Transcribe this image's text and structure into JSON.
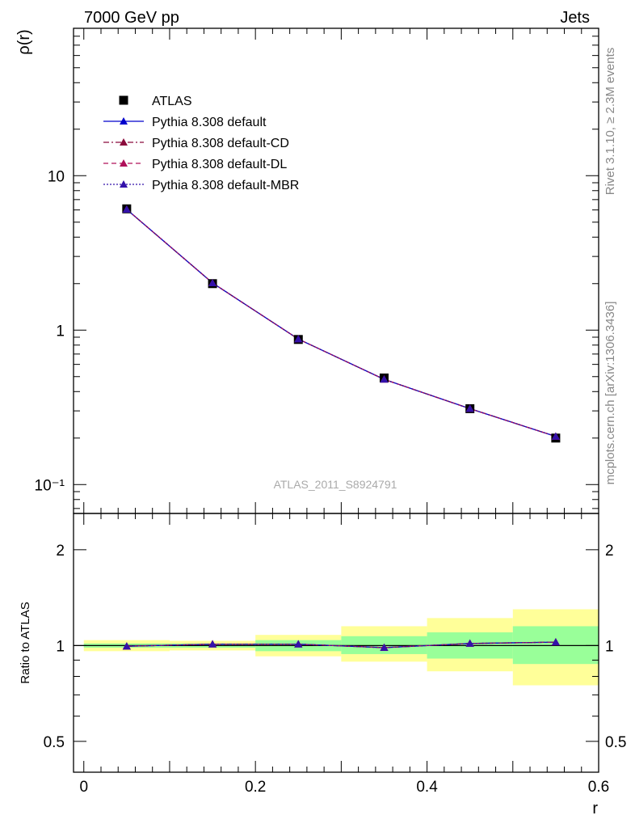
{
  "header": {
    "left": "7000 GeV pp",
    "right": "Jets"
  },
  "side_labels": {
    "rivet": "Rivet 3.1.10, ≥ 2.3M events",
    "source": "mcplots.cern.ch [arXiv:1306.3436]"
  },
  "watermark": "ATLAS_2011_S8924791",
  "legend_items": [
    {
      "label": "ATLAS",
      "color": "#000000",
      "marker": "square",
      "line": "none"
    },
    {
      "label": "Pythia 8.308 default",
      "color": "#0000cc",
      "marker": "triangle",
      "line": "solid"
    },
    {
      "label": "Pythia 8.308 default-CD",
      "color": "#8b0a3c",
      "marker": "triangle",
      "line": "dashdot"
    },
    {
      "label": "Pythia 8.308 default-DL",
      "color": "#b0105a",
      "marker": "triangle",
      "line": "dashed"
    },
    {
      "label": "Pythia 8.308 default-MBR",
      "color": "#3311aa",
      "marker": "triangle",
      "line": "dotted"
    }
  ],
  "chart_data": [
    {
      "type": "line",
      "ylabel": "ρ(r)",
      "yscale": "log",
      "ylim": [
        0.065,
        90
      ],
      "xlim": [
        -0.012,
        0.6
      ],
      "ytick_labels": [
        {
          "value": 0.1,
          "label": "10⁻¹"
        },
        {
          "value": 1,
          "label": "1"
        },
        {
          "value": 10,
          "label": "10"
        }
      ],
      "x": [
        0.05,
        0.15,
        0.25,
        0.35,
        0.45,
        0.55
      ],
      "x_bins": [
        [
          0,
          0.1
        ],
        [
          0.1,
          0.2
        ],
        [
          0.2,
          0.3
        ],
        [
          0.3,
          0.4
        ],
        [
          0.4,
          0.5
        ],
        [
          0.5,
          0.6
        ]
      ],
      "series": [
        {
          "name": "ATLAS",
          "values": [
            6.1,
            2.0,
            0.87,
            0.49,
            0.31,
            0.2
          ],
          "color": "#000000"
        },
        {
          "name": "Pythia 8.308 default",
          "values": [
            6.05,
            2.02,
            0.875,
            0.48,
            0.31,
            0.205
          ],
          "color": "#0000cc"
        },
        {
          "name": "Pythia 8.308 default-CD",
          "values": [
            6.05,
            2.02,
            0.875,
            0.48,
            0.31,
            0.205
          ],
          "color": "#8b0a3c"
        },
        {
          "name": "Pythia 8.308 default-DL",
          "values": [
            6.05,
            2.02,
            0.875,
            0.48,
            0.31,
            0.205
          ],
          "color": "#b0105a"
        },
        {
          "name": "Pythia 8.308 default-MBR",
          "values": [
            6.05,
            2.02,
            0.875,
            0.48,
            0.31,
            0.205
          ],
          "color": "#3311aa"
        }
      ]
    },
    {
      "type": "line",
      "ylabel": "Ratio to ATLAS",
      "xlabel": "r",
      "yscale": "log",
      "ylim": [
        0.4,
        2.6
      ],
      "xlim": [
        -0.012,
        0.6
      ],
      "xtick_labels": [
        {
          "value": 0,
          "label": "0"
        },
        {
          "value": 0.2,
          "label": "0.2"
        },
        {
          "value": 0.4,
          "label": "0.4"
        },
        {
          "value": 0.6,
          "label": "0.6"
        }
      ],
      "ytick_labels": [
        {
          "value": 0.5,
          "label": "0.5"
        },
        {
          "value": 1,
          "label": "1"
        },
        {
          "value": 2,
          "label": "2"
        }
      ],
      "x": [
        0.05,
        0.15,
        0.25,
        0.35,
        0.45,
        0.55
      ],
      "x_bins": [
        [
          0,
          0.1
        ],
        [
          0.1,
          0.2
        ],
        [
          0.2,
          0.3
        ],
        [
          0.3,
          0.4
        ],
        [
          0.4,
          0.5
        ],
        [
          0.5,
          0.6
        ]
      ],
      "bands": {
        "inner": {
          "color": "#99ff99",
          "low": [
            0.985,
            0.985,
            0.96,
            0.94,
            0.91,
            0.875
          ],
          "high": [
            1.015,
            1.015,
            1.04,
            1.07,
            1.1,
            1.15
          ]
        },
        "outer": {
          "color": "#ffff99",
          "low": [
            0.96,
            0.965,
            0.925,
            0.89,
            0.83,
            0.75
          ],
          "high": [
            1.04,
            1.035,
            1.08,
            1.15,
            1.22,
            1.3
          ]
        }
      },
      "series": [
        {
          "name": "Pythia 8.308 default",
          "values": [
            0.995,
            1.01,
            1.01,
            0.985,
            1.015,
            1.025
          ],
          "color": "#0000cc"
        },
        {
          "name": "Pythia 8.308 default-CD",
          "values": [
            0.995,
            1.01,
            1.01,
            0.985,
            1.015,
            1.025
          ],
          "color": "#8b0a3c"
        },
        {
          "name": "Pythia 8.308 default-DL",
          "values": [
            0.995,
            1.01,
            1.01,
            0.985,
            1.015,
            1.025
          ],
          "color": "#b0105a"
        },
        {
          "name": "Pythia 8.308 default-MBR",
          "values": [
            0.995,
            1.01,
            1.01,
            0.985,
            1.015,
            1.025
          ],
          "color": "#3311aa"
        }
      ]
    }
  ]
}
